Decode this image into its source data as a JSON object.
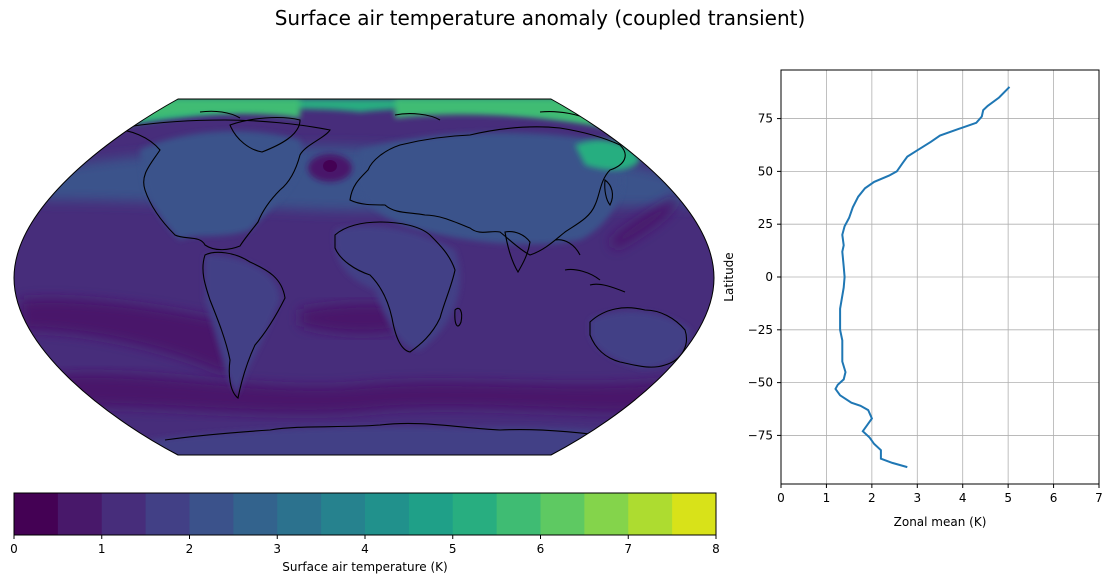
{
  "figure": {
    "title": "Surface air temperature anomaly (coupled transient)"
  },
  "chart_data": [
    {
      "type": "heatmap",
      "projection": "Robinson",
      "coastlines": true,
      "field": "Surface air temperature",
      "colorbar": {
        "label": "Surface air temperature (K)",
        "orientation": "horizontal",
        "levels": [
          0,
          0.5,
          1,
          1.5,
          2,
          2.5,
          3,
          3.5,
          4,
          4.5,
          5,
          5.5,
          6,
          6.5,
          7,
          7.5,
          8
        ],
        "ticks": [
          "0",
          "1",
          "2",
          "3",
          "4",
          "5",
          "6",
          "7",
          "8"
        ],
        "colors": [
          "#440154",
          "#48186a",
          "#472d7b",
          "#424086",
          "#3b528b",
          "#33638d",
          "#2c728e",
          "#26828e",
          "#21918c",
          "#1fa088",
          "#28ae80",
          "#3fbc73",
          "#5ec962",
          "#84d44b",
          "#addc30",
          "#d8e219",
          "#fde725"
        ]
      },
      "regions": [
        {
          "name": "global ocean background",
          "value": 1.2
        },
        {
          "name": "continents",
          "value": 1.8
        },
        {
          "name": "northern land mid-latitudes",
          "value": 2.3
        },
        {
          "name": "arctic",
          "value": 4.6
        },
        {
          "name": "north atlantic warming hole",
          "value": 0.4
        },
        {
          "name": "southern ocean band",
          "value": 0.9
        },
        {
          "name": "antarctica",
          "value": 1.9
        }
      ]
    },
    {
      "type": "line",
      "xlabel": "Zonal mean (K)",
      "ylabel": "Latitude",
      "xlim": [
        0,
        7
      ],
      "ylim": [
        -98,
        98
      ],
      "xticks": [
        0,
        1,
        2,
        3,
        4,
        5,
        6,
        7
      ],
      "yticks": [
        -75,
        -50,
        -25,
        0,
        25,
        50,
        75
      ],
      "grid": true,
      "series": [
        {
          "color": "#1f77b4",
          "points": [
            [
              2.78,
              -90
            ],
            [
              2.45,
              -88
            ],
            [
              2.2,
              -86
            ],
            [
              2.2,
              -82
            ],
            [
              2.05,
              -79
            ],
            [
              1.95,
              -76
            ],
            [
              1.8,
              -73
            ],
            [
              1.9,
              -70
            ],
            [
              2.0,
              -67
            ],
            [
              1.92,
              -63
            ],
            [
              1.75,
              -61
            ],
            [
              1.55,
              -59.5
            ],
            [
              1.3,
              -56
            ],
            [
              1.2,
              -53
            ],
            [
              1.25,
              -51
            ],
            [
              1.38,
              -48.5
            ],
            [
              1.42,
              -45
            ],
            [
              1.35,
              -40
            ],
            [
              1.35,
              -30
            ],
            [
              1.3,
              -25
            ],
            [
              1.3,
              -15
            ],
            [
              1.38,
              -5
            ],
            [
              1.4,
              0
            ],
            [
              1.38,
              5
            ],
            [
              1.35,
              12
            ],
            [
              1.38,
              15
            ],
            [
              1.35,
              20
            ],
            [
              1.4,
              24
            ],
            [
              1.5,
              28
            ],
            [
              1.58,
              33
            ],
            [
              1.7,
              38
            ],
            [
              1.85,
              42
            ],
            [
              2.05,
              45
            ],
            [
              2.38,
              48
            ],
            [
              2.55,
              50
            ],
            [
              2.68,
              54
            ],
            [
              2.78,
              57
            ],
            [
              3.0,
              60
            ],
            [
              3.3,
              64
            ],
            [
              3.5,
              67
            ],
            [
              3.9,
              70
            ],
            [
              4.3,
              73
            ],
            [
              4.42,
              76
            ],
            [
              4.45,
              79
            ],
            [
              4.55,
              81
            ],
            [
              4.8,
              85
            ],
            [
              5.03,
              90
            ]
          ]
        }
      ]
    }
  ]
}
